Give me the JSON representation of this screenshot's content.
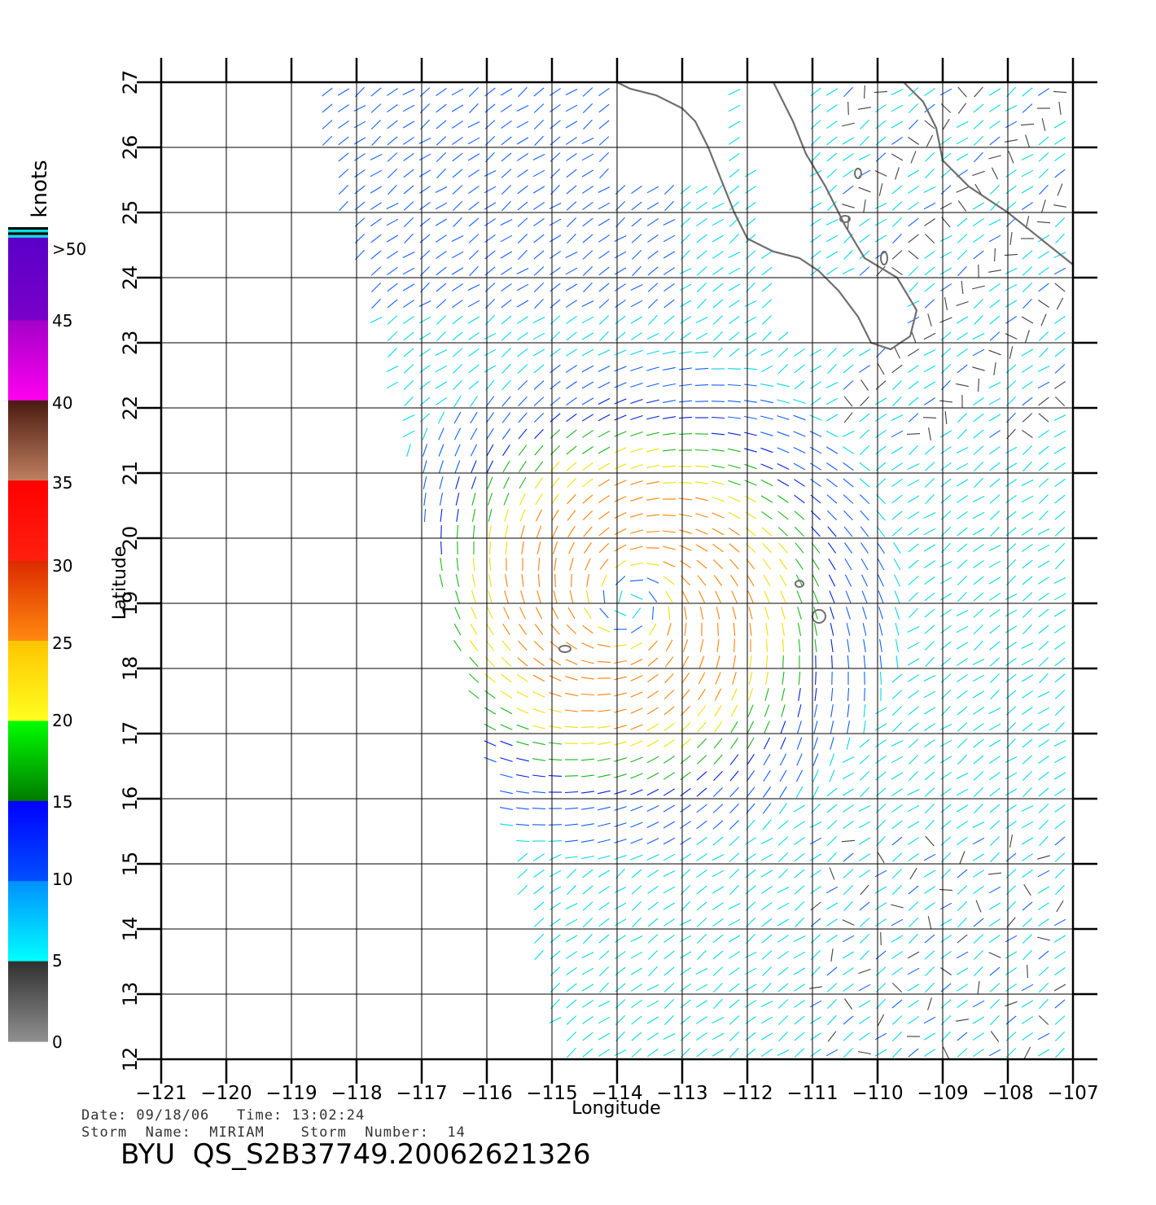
{
  "legend": {
    "unit": "knots",
    "labels": [
      ">50",
      "45",
      "40",
      "35",
      "30",
      "25",
      "20",
      "15",
      "10",
      "5",
      "0"
    ],
    "bands": [
      {
        "range": "45-50",
        "top": "#5a00c8",
        "bottom": "#7a00c8"
      },
      {
        "range": "40-45",
        "top": "#a400c8",
        "bottom": "#ff00f0"
      },
      {
        "range": "35-40",
        "top": "#4a1a10",
        "bottom": "#c08060"
      },
      {
        "range": "30-35",
        "top": "#ff0000",
        "bottom": "#ff2010"
      },
      {
        "range": "25-30",
        "top": "#dd2a00",
        "bottom": "#ff8a10"
      },
      {
        "range": "20-25",
        "top": "#ffc400",
        "bottom": "#ffff20"
      },
      {
        "range": "15-20",
        "top": "#00ff00",
        "bottom": "#007a00"
      },
      {
        "range": "10-15",
        "top": "#0000ff",
        "bottom": "#0050ff"
      },
      {
        "range": "5-10",
        "top": "#0090ff",
        "bottom": "#00ffff"
      },
      {
        "range": "0-5",
        "top": "#303030",
        "bottom": "#909090"
      }
    ]
  },
  "axes": {
    "xlabel": "Longitude",
    "ylabel": "Latitude",
    "xticks": [
      -121,
      -120,
      -119,
      -118,
      -117,
      -116,
      -115,
      -114,
      -113,
      -112,
      -111,
      -110,
      -109,
      -108,
      -107
    ],
    "yticks": [
      12,
      13,
      14,
      15,
      16,
      17,
      18,
      19,
      20,
      21,
      22,
      23,
      24,
      25,
      26,
      27
    ],
    "xtick_labels": [
      "−121",
      "−120",
      "−119",
      "−118",
      "−117",
      "−116",
      "−115",
      "−114",
      "−113",
      "−112",
      "−111",
      "−110",
      "−109",
      "−108",
      "−107"
    ],
    "ytick_labels": [
      "12",
      "13",
      "14",
      "15",
      "16",
      "17",
      "18",
      "19",
      "20",
      "21",
      "22",
      "23",
      "24",
      "25",
      "26",
      "27"
    ],
    "lon_range": [
      -121,
      -107
    ],
    "lat_range": [
      12,
      27
    ],
    "grid": true
  },
  "storm": {
    "center_lon": -113.8,
    "center_lat": 19.0,
    "max_wind_knots": 30
  },
  "wind_colors": {
    "calm": "#404040",
    "light": "#00d8e8",
    "moderate": "#1060ff",
    "fresh": "#0020e0",
    "strong": "#18b818",
    "gale": "#f0e000",
    "storm": "#ff8000",
    "severe": "#e02000"
  },
  "coastline_color": "#6e6e6e",
  "info": {
    "date_line": "Date: 09/18/06   Time: 13:02:24",
    "storm_line": "Storm  Name:  MIRIAM    Storm  Number:  14",
    "product": "BYU  QS_S2B37749.20062621326"
  }
}
